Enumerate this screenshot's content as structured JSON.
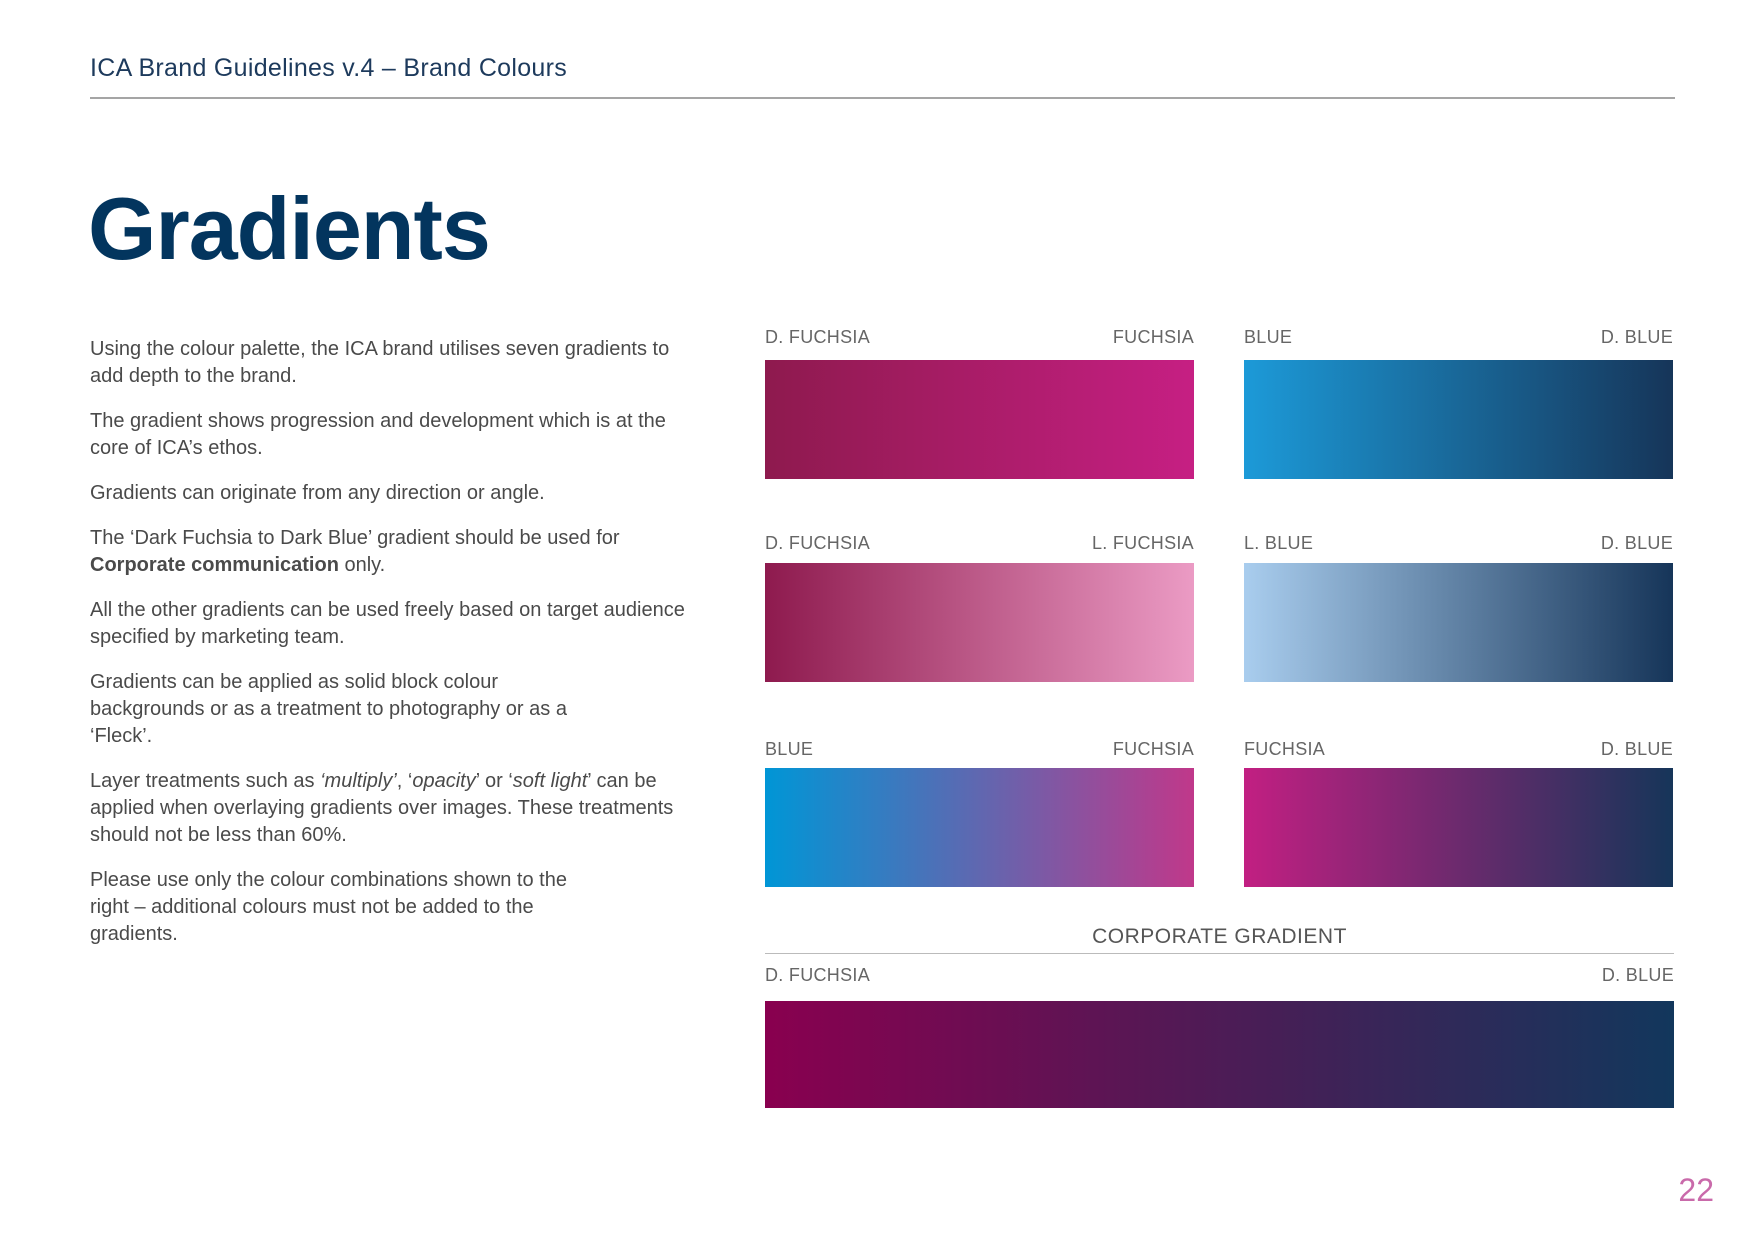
{
  "header": {
    "title": "ICA Brand Guidelines v.4 – Brand Colours"
  },
  "page_title": "Gradients",
  "body": {
    "p1": "Using the colour palette, the ICA brand utilises seven gradients to add depth to the brand.",
    "p2": "The gradient shows progression and development which is at the core of ICA’s ethos.",
    "p3": "Gradients can originate from any direction or angle.",
    "p4a": "The ‘Dark Fuchsia to Dark Blue’ gradient should be used for ",
    "p4b": "Corporate communication",
    "p4c": " only.",
    "p5": "All the other gradients can be used freely based on target audience specified by marketing team.",
    "p6": "Gradients can be applied as solid block colour backgrounds or as a treatment to photography or as a ‘Fleck’.",
    "p7a": "Layer treatments such as ",
    "p7b": "‘multiply’",
    "p7c": ", ‘",
    "p7d": "opacity",
    "p7e": "’ or ‘",
    "p7f": "soft light",
    "p7g": "’ can be applied when overlaying gradients over images. These treatments should not be less than 60%.",
    "p8": "Please use only the colour combinations shown to the right – additional colours must not be added to the gradients."
  },
  "gradients": [
    {
      "from_label": "D. FUCHSIA",
      "to_label": "FUCHSIA",
      "from": "#8e1a4e",
      "to": "#c61f83"
    },
    {
      "from_label": "BLUE",
      "to_label": "D. BLUE",
      "from": "#1c9ad8",
      "to": "#163559"
    },
    {
      "from_label": "D. FUCHSIA",
      "to_label": "L. FUCHSIA",
      "from": "#8e1a4e",
      "to": "#eb9bc4"
    },
    {
      "from_label": "L. BLUE",
      "to_label": "D. BLUE",
      "from": "#a9cdee",
      "to": "#163559"
    },
    {
      "from_label": "BLUE",
      "to_label": "FUCHSIA",
      "from": "#0096d6",
      "to": "#c0388a"
    },
    {
      "from_label": "FUCHSIA",
      "to_label": "D. BLUE",
      "from": "#c21f82",
      "to": "#163559"
    }
  ],
  "corporate": {
    "heading": "CORPORATE GRADIENT",
    "from_label": "D. FUCHSIA",
    "to_label": "D. BLUE",
    "from": "#89004f",
    "to": "#12375c"
  },
  "page_number": "22"
}
